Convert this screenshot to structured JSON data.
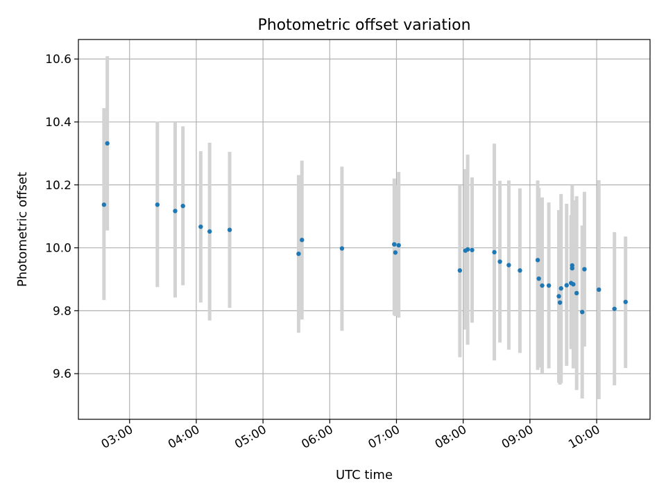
{
  "chart_data": {
    "type": "scatter",
    "title": "Photometric offset variation",
    "xlabel": "UTC time",
    "ylabel": "Photometric offset",
    "xlim": [
      "02:14",
      "10:48"
    ],
    "ylim": [
      9.455,
      10.662
    ],
    "grid": true,
    "x_ticks": [
      "03:00",
      "04:00",
      "05:00",
      "06:00",
      "07:00",
      "08:00",
      "09:00",
      "10:00"
    ],
    "y_ticks": [
      9.6,
      9.8,
      10.0,
      10.2,
      10.4,
      10.6
    ],
    "y_tick_labels": [
      "9.6",
      "9.8",
      "10.0",
      "10.2",
      "10.4",
      "10.6"
    ],
    "point_color": "#1f77b4",
    "errorbar_color": "#d3d3d3",
    "series": [
      {
        "points": [
          {
            "x": "02:37",
            "y": 10.137,
            "lo": 9.834,
            "hi": 10.444
          },
          {
            "x": "02:40",
            "y": 10.332,
            "lo": 10.055,
            "hi": 10.609
          },
          {
            "x": "03:25",
            "y": 10.137,
            "lo": 9.875,
            "hi": 10.401
          },
          {
            "x": "03:41",
            "y": 10.117,
            "lo": 9.842,
            "hi": 10.398
          },
          {
            "x": "03:48",
            "y": 10.133,
            "lo": 9.881,
            "hi": 10.386
          },
          {
            "x": "04:04",
            "y": 10.067,
            "lo": 9.826,
            "hi": 10.307
          },
          {
            "x": "04:12",
            "y": 10.052,
            "lo": 9.769,
            "hi": 10.334
          },
          {
            "x": "04:30",
            "y": 10.057,
            "lo": 9.809,
            "hi": 10.305
          },
          {
            "x": "05:32",
            "y": 9.981,
            "lo": 9.73,
            "hi": 10.231
          },
          {
            "x": "05:35",
            "y": 10.025,
            "lo": 9.772,
            "hi": 10.277
          },
          {
            "x": "06:11",
            "y": 9.998,
            "lo": 9.736,
            "hi": 10.258
          },
          {
            "x": "06:58",
            "y": 10.011,
            "lo": 9.786,
            "hi": 10.22
          },
          {
            "x": "06:59",
            "y": 9.985,
            "lo": 9.783,
            "hi": 10.2
          },
          {
            "x": "07:02",
            "y": 10.008,
            "lo": 9.778,
            "hi": 10.241
          },
          {
            "x": "07:57",
            "y": 9.928,
            "lo": 9.652,
            "hi": 10.2
          },
          {
            "x": "08:02",
            "y": 9.991,
            "lo": 9.74,
            "hi": 10.25
          },
          {
            "x": "08:04",
            "y": 9.995,
            "lo": 9.692,
            "hi": 10.296
          },
          {
            "x": "08:08",
            "y": 9.993,
            "lo": 9.762,
            "hi": 10.224
          },
          {
            "x": "08:28",
            "y": 9.986,
            "lo": 9.642,
            "hi": 10.331
          },
          {
            "x": "08:33",
            "y": 9.956,
            "lo": 9.699,
            "hi": 10.213
          },
          {
            "x": "08:41",
            "y": 9.945,
            "lo": 9.676,
            "hi": 10.214
          },
          {
            "x": "08:51",
            "y": 9.928,
            "lo": 9.666,
            "hi": 10.189
          },
          {
            "x": "09:07",
            "y": 9.961,
            "lo": 9.612,
            "hi": 10.214
          },
          {
            "x": "09:08",
            "y": 9.902,
            "lo": 9.62,
            "hi": 10.19
          },
          {
            "x": "09:11",
            "y": 9.88,
            "lo": 9.602,
            "hi": 10.16
          },
          {
            "x": "09:17",
            "y": 9.88,
            "lo": 9.617,
            "hi": 10.144
          },
          {
            "x": "09:26",
            "y": 9.846,
            "lo": 9.571,
            "hi": 10.12
          },
          {
            "x": "09:27",
            "y": 9.826,
            "lo": 9.565,
            "hi": 10.09
          },
          {
            "x": "09:28",
            "y": 9.871,
            "lo": 9.57,
            "hi": 10.171
          },
          {
            "x": "09:33",
            "y": 9.881,
            "lo": 9.625,
            "hi": 10.14
          },
          {
            "x": "09:37",
            "y": 9.888,
            "lo": 9.678,
            "hi": 10.104
          },
          {
            "x": "09:38",
            "y": 9.944,
            "lo": 9.68,
            "hi": 10.2
          },
          {
            "x": "09:38",
            "y": 9.935,
            "lo": 9.7,
            "hi": 10.17
          },
          {
            "x": "09:39",
            "y": 9.884,
            "lo": 9.617,
            "hi": 10.151
          },
          {
            "x": "09:42",
            "y": 9.856,
            "lo": 9.548,
            "hi": 10.164
          },
          {
            "x": "09:47",
            "y": 9.796,
            "lo": 9.521,
            "hi": 10.071
          },
          {
            "x": "09:49",
            "y": 9.932,
            "lo": 9.686,
            "hi": 10.178
          },
          {
            "x": "10:02",
            "y": 9.867,
            "lo": 9.519,
            "hi": 10.215
          },
          {
            "x": "10:16",
            "y": 9.806,
            "lo": 9.563,
            "hi": 10.05
          },
          {
            "x": "10:26",
            "y": 9.828,
            "lo": 9.618,
            "hi": 10.036
          }
        ]
      }
    ]
  }
}
